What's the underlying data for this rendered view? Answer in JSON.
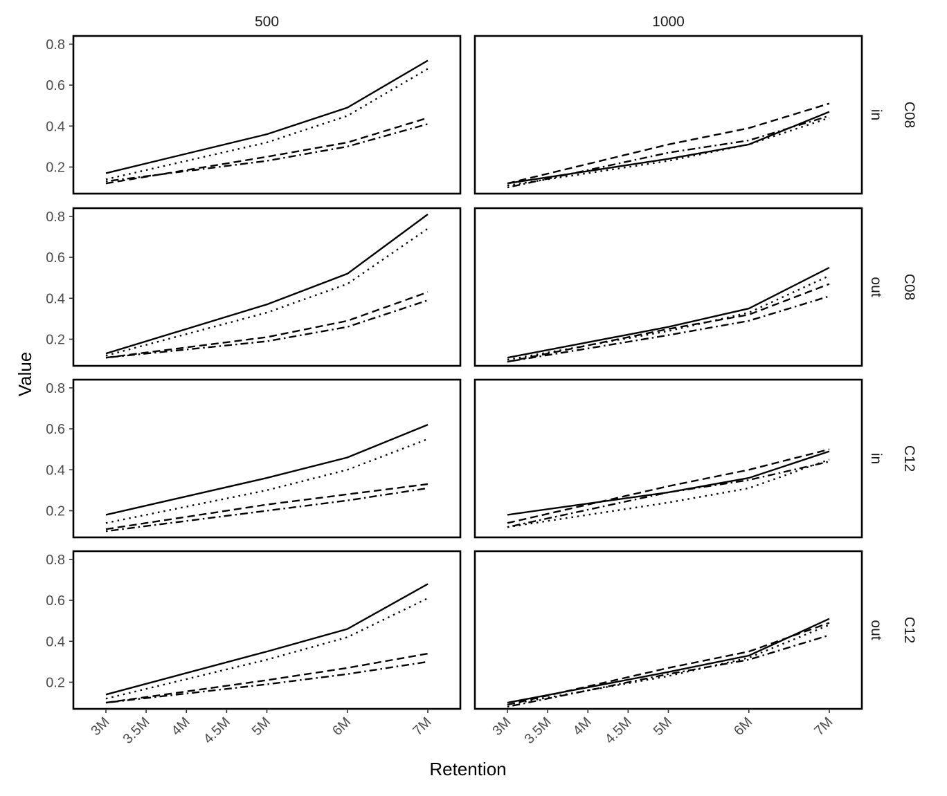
{
  "chart_data": {
    "type": "line",
    "xlabel": "Retention",
    "ylabel": "Value",
    "x": [
      "3M",
      "3.5M",
      "4M",
      "4.5M",
      "5M",
      "6M",
      "7M"
    ],
    "x_numeric": [
      3,
      3.5,
      4,
      4.5,
      5,
      6,
      7
    ],
    "ylim": [
      0.07,
      0.84
    ],
    "y_ticks": [
      "0.2",
      "0.4",
      "0.6",
      "0.8"
    ],
    "y_tick_values": [
      0.2,
      0.4,
      0.6,
      0.8
    ],
    "grid": false,
    "legend": "none",
    "facet_columns": [
      "500",
      "1000"
    ],
    "facet_rows": [
      {
        "outer": "C08",
        "inner": "in"
      },
      {
        "outer": "C08",
        "inner": "out"
      },
      {
        "outer": "C12",
        "inner": "in"
      },
      {
        "outer": "C12",
        "inner": "out"
      }
    ],
    "series_styles": [
      "solid",
      "dotted",
      "dashed",
      "dotdash"
    ],
    "panels": [
      {
        "row": 0,
        "col": 0,
        "x_at": [
          3,
          5,
          6,
          7
        ],
        "series": [
          {
            "line": "solid",
            "values": [
              0.17,
              0.36,
              0.49,
              0.72
            ]
          },
          {
            "line": "dotted",
            "values": [
              0.14,
              0.32,
              0.45,
              0.68
            ]
          },
          {
            "line": "dashed",
            "values": [
              0.12,
              0.25,
              0.32,
              0.44
            ]
          },
          {
            "line": "dotdash",
            "values": [
              0.13,
              0.23,
              0.3,
              0.41
            ]
          }
        ]
      },
      {
        "row": 0,
        "col": 1,
        "x_at": [
          3,
          5,
          6,
          7
        ],
        "series": [
          {
            "line": "solid",
            "values": [
              0.12,
              0.24,
              0.31,
              0.47
            ]
          },
          {
            "line": "dotted",
            "values": [
              0.11,
              0.23,
              0.31,
              0.44
            ]
          },
          {
            "line": "dashed",
            "values": [
              0.12,
              0.31,
              0.39,
              0.51
            ]
          },
          {
            "line": "dotdash",
            "values": [
              0.1,
              0.27,
              0.33,
              0.45
            ]
          }
        ]
      },
      {
        "row": 1,
        "col": 0,
        "x_at": [
          3,
          5,
          6,
          7
        ],
        "series": [
          {
            "line": "solid",
            "values": [
              0.13,
              0.37,
              0.52,
              0.81
            ]
          },
          {
            "line": "dotted",
            "values": [
              0.12,
              0.33,
              0.47,
              0.74
            ]
          },
          {
            "line": "dashed",
            "values": [
              0.11,
              0.21,
              0.29,
              0.43
            ]
          },
          {
            "line": "dotdash",
            "values": [
              0.11,
              0.19,
              0.26,
              0.39
            ]
          }
        ]
      },
      {
        "row": 1,
        "col": 1,
        "x_at": [
          3,
          5,
          6,
          7
        ],
        "series": [
          {
            "line": "solid",
            "values": [
              0.11,
              0.26,
              0.35,
              0.55
            ]
          },
          {
            "line": "dotted",
            "values": [
              0.1,
              0.24,
              0.33,
              0.51
            ]
          },
          {
            "line": "dashed",
            "values": [
              0.09,
              0.25,
              0.32,
              0.47
            ]
          },
          {
            "line": "dotdash",
            "values": [
              0.09,
              0.22,
              0.29,
              0.41
            ]
          }
        ]
      },
      {
        "row": 2,
        "col": 0,
        "x_at": [
          3,
          5,
          6,
          7
        ],
        "series": [
          {
            "line": "solid",
            "values": [
              0.18,
              0.36,
              0.46,
              0.62
            ]
          },
          {
            "line": "dotted",
            "values": [
              0.14,
              0.3,
              0.4,
              0.55
            ]
          },
          {
            "line": "dashed",
            "values": [
              0.11,
              0.23,
              0.28,
              0.33
            ]
          },
          {
            "line": "dotdash",
            "values": [
              0.1,
              0.2,
              0.25,
              0.31
            ]
          }
        ]
      },
      {
        "row": 2,
        "col": 1,
        "x_at": [
          3,
          5,
          6,
          7
        ],
        "series": [
          {
            "line": "solid",
            "values": [
              0.18,
              0.29,
              0.36,
              0.49
            ]
          },
          {
            "line": "dotted",
            "values": [
              0.12,
              0.24,
              0.31,
              0.45
            ]
          },
          {
            "line": "dashed",
            "values": [
              0.14,
              0.32,
              0.4,
              0.5
            ]
          },
          {
            "line": "dotdash",
            "values": [
              0.12,
              0.29,
              0.35,
              0.44
            ]
          }
        ]
      },
      {
        "row": 3,
        "col": 0,
        "x_at": [
          3,
          5,
          6,
          7
        ],
        "series": [
          {
            "line": "solid",
            "values": [
              0.14,
              0.35,
              0.46,
              0.68
            ]
          },
          {
            "line": "dotted",
            "values": [
              0.12,
              0.31,
              0.42,
              0.61
            ]
          },
          {
            "line": "dashed",
            "values": [
              0.1,
              0.21,
              0.27,
              0.34
            ]
          },
          {
            "line": "dotdash",
            "values": [
              0.1,
              0.19,
              0.24,
              0.3
            ]
          }
        ]
      },
      {
        "row": 3,
        "col": 1,
        "x_at": [
          3,
          5,
          6,
          7
        ],
        "series": [
          {
            "line": "solid",
            "values": [
              0.1,
              0.25,
              0.33,
              0.51
            ]
          },
          {
            "line": "dotted",
            "values": [
              0.09,
              0.23,
              0.32,
              0.48
            ]
          },
          {
            "line": "dashed",
            "values": [
              0.09,
              0.27,
              0.35,
              0.49
            ]
          },
          {
            "line": "dotdash",
            "values": [
              0.08,
              0.24,
              0.31,
              0.43
            ]
          }
        ]
      }
    ]
  }
}
